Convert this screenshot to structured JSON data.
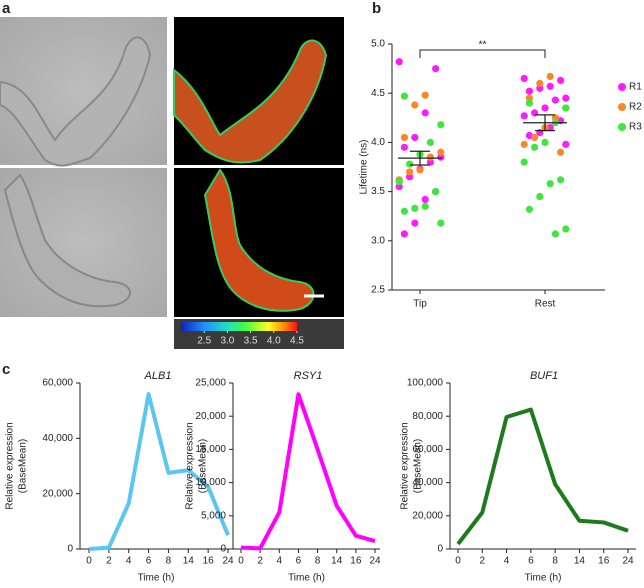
{
  "panel_labels": [
    "a",
    "b",
    "c"
  ],
  "chart_data": [
    {
      "type": "colorbar",
      "xlim": [
        2.0,
        4.5
      ],
      "xticks": [
        2.5,
        {
          "value": 3,
          "label": "3.0"
        },
        3.5,
        {
          "value": 4,
          "label": "4.0"
        },
        4.5
      ]
    },
    {
      "type": "strip",
      "ylabel": "Lifetime (ns)",
      "categories": [
        "Tip",
        "Rest"
      ],
      "ylim": [
        2.5,
        5.0
      ],
      "yticks": [
        2.5,
        {
          "value": 3,
          "label": "3.0"
        },
        3.5,
        {
          "value": 4,
          "label": "4.0"
        },
        4.5,
        {
          "value": 5,
          "label": "5.0"
        }
      ],
      "annotation": "**",
      "mean": [
        3.84,
        4.2
      ],
      "error": [
        0.07,
        0.08
      ],
      "series": [
        {
          "name": "R1",
          "color": "#ff1aff",
          "values": [
            [
              4.82,
              4.75,
              4.3,
              4.05,
              3.95,
              3.85,
              3.8,
              3.73,
              3.65,
              3.55,
              3.5,
              3.42,
              3.18,
              3.07
            ],
            [
              4.65,
              4.63,
              4.57,
              4.55,
              4.52,
              4.45,
              4.43,
              4.35,
              4.3,
              4.27,
              4.22,
              4.15,
              4.1,
              4.07,
              3.98
            ]
          ]
        },
        {
          "name": "R2",
          "color": "#f7882a",
          "values": [
            [
              4.48,
              4.38,
              4.05,
              3.9,
              3.85,
              3.72,
              3.7,
              3.62
            ],
            [
              4.67,
              4.6,
              4.45,
              4.35,
              4.25,
              4.15,
              4.05,
              3.98,
              3.9
            ]
          ]
        },
        {
          "name": "R3",
          "color": "#3ee63e",
          "values": [
            [
              4.47,
              4.18,
              4.0,
              3.88,
              3.78,
              3.6,
              3.5,
              3.35,
              3.33,
              3.3,
              3.18
            ],
            [
              4.4,
              4.35,
              4.2,
              4.0,
              3.95,
              3.8,
              3.62,
              3.58,
              3.45,
              3.32,
              3.12,
              3.07
            ]
          ]
        }
      ]
    },
    {
      "type": "line",
      "title": "ALB1",
      "ylabel": [
        "Relative expression",
        "(BaseMean)"
      ],
      "xlabel": "Time (h)",
      "categories": [
        "0",
        "2",
        "4",
        "6",
        "8",
        "14",
        "16",
        "24"
      ],
      "ylim": [
        0,
        60000
      ],
      "yticks": [
        0,
        {
          "value": 20000,
          "label": "20,000"
        },
        {
          "value": 40000,
          "label": "40,000"
        },
        {
          "value": 60000,
          "label": "60,000"
        }
      ],
      "color": "#5cc6f2",
      "values": [
        0,
        500,
        16500,
        56000,
        27500,
        28500,
        22500,
        5000
      ]
    },
    {
      "type": "line",
      "title": "RSY1",
      "ylabel": [
        "Relative expression",
        "(BaseMean)"
      ],
      "xlabel": "Time (h)",
      "categories": [
        "0",
        "2",
        "4",
        "6",
        "8",
        "14",
        "16",
        "24"
      ],
      "ylim": [
        0,
        25000
      ],
      "yticks": [
        0,
        {
          "value": 5000,
          "label": "5,000"
        },
        {
          "value": 10000,
          "label": "10,000"
        },
        {
          "value": 15000,
          "label": "15,000"
        },
        {
          "value": 20000,
          "label": "20,000"
        },
        {
          "value": 25000,
          "label": "25,000"
        }
      ],
      "color": "#ff00ff",
      "values": [
        200,
        100,
        5500,
        23300,
        15000,
        6500,
        2000,
        1200
      ]
    },
    {
      "type": "line",
      "title": "BUF1",
      "ylabel": [
        "Relative expression",
        "(BaseMean)"
      ],
      "xlabel": "Time (h)",
      "categories": [
        "0",
        "2",
        "4",
        "6",
        "8",
        "14",
        "16",
        "24"
      ],
      "ylim": [
        0,
        100000
      ],
      "yticks": [
        0,
        {
          "value": 20000,
          "label": "20,000"
        },
        {
          "value": 40000,
          "label": "40,000"
        },
        {
          "value": 60000,
          "label": "60,000"
        },
        {
          "value": 80000,
          "label": "80,000"
        },
        {
          "value": 100000,
          "label": "100,000"
        }
      ],
      "color": "#1e7a1e",
      "values": [
        3000,
        22000,
        79500,
        84000,
        39000,
        17000,
        16000,
        11000
      ]
    }
  ]
}
